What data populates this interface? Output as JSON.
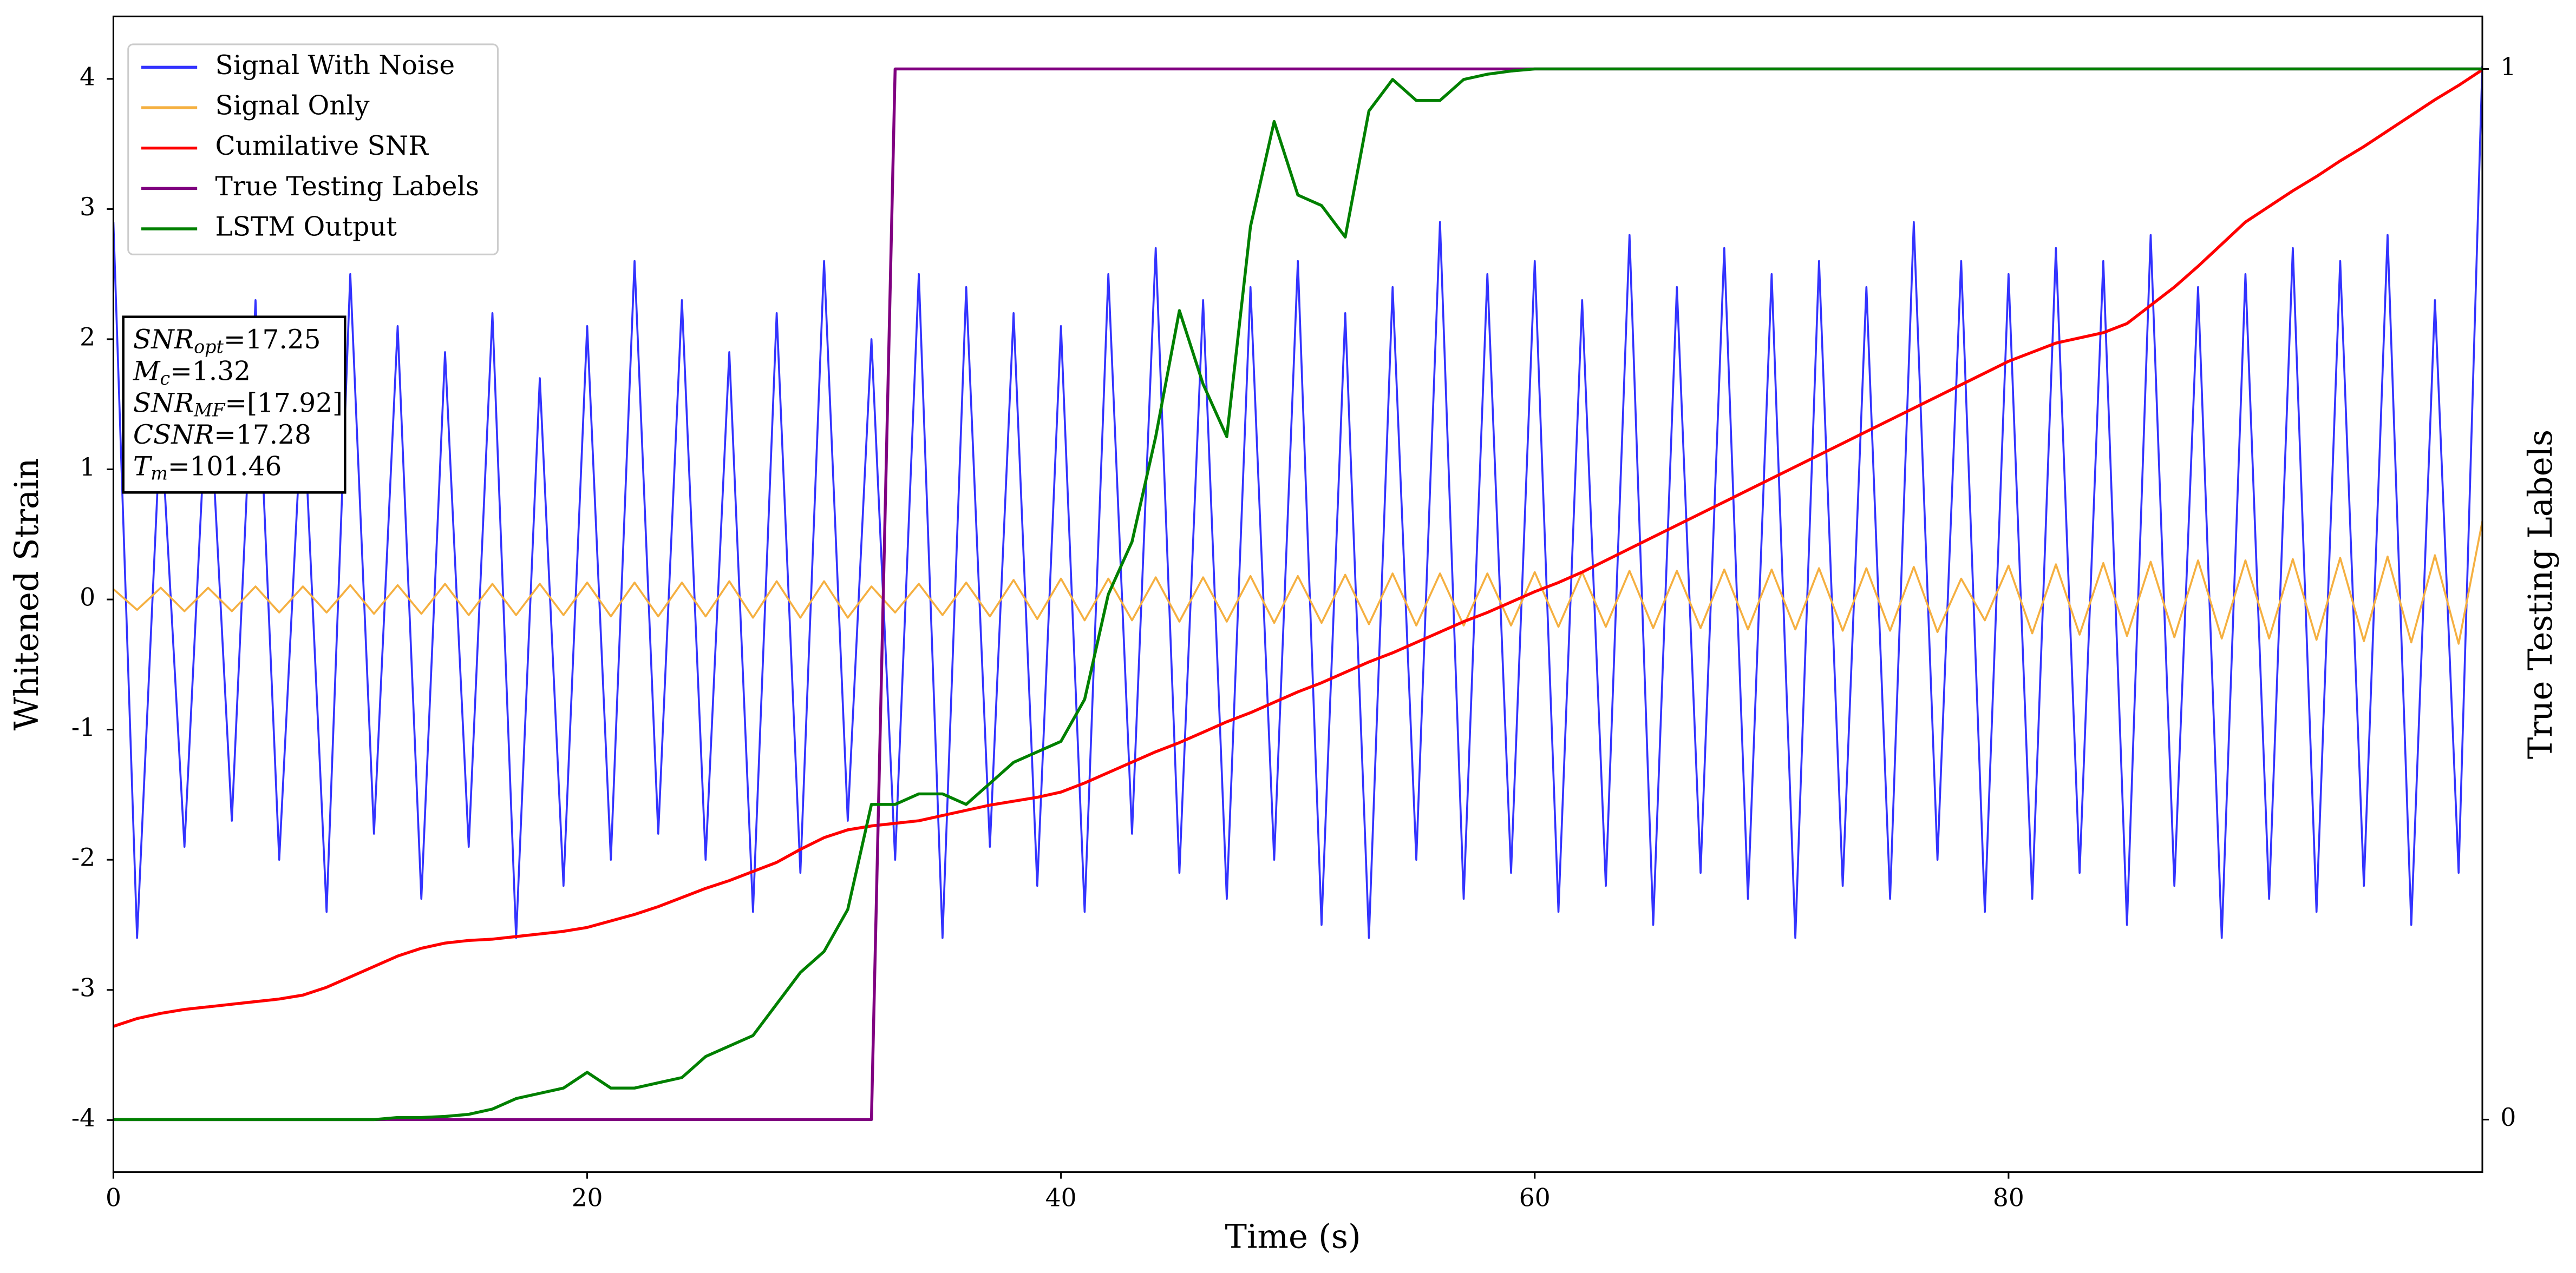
{
  "chart_data": {
    "type": "line",
    "x_label": "Time (s)",
    "y_label": "Whitened Strain",
    "y2_label": "True Testing Labels",
    "xlim": [
      0,
      100
    ],
    "xticks": [
      0,
      20,
      40,
      60,
      80
    ],
    "ylim": [
      -4.4,
      4.48
    ],
    "yticks": [
      -4,
      -3,
      -2,
      -1,
      0,
      1,
      2,
      3,
      4
    ],
    "y2lim": [
      -0.05,
      1.05
    ],
    "y2ticks": [
      0,
      1
    ],
    "legend": "upper left",
    "x": [
      0,
      1,
      2,
      3,
      4,
      5,
      6,
      7,
      8,
      9,
      10,
      11,
      12,
      13,
      14,
      15,
      16,
      17,
      18,
      19,
      20,
      21,
      22,
      23,
      24,
      25,
      26,
      27,
      28,
      29,
      30,
      31,
      32,
      33,
      34,
      35,
      36,
      37,
      38,
      39,
      40,
      41,
      42,
      43,
      44,
      45,
      46,
      47,
      48,
      49,
      50,
      51,
      52,
      53,
      54,
      55,
      56,
      57,
      58,
      59,
      60,
      61,
      62,
      63,
      64,
      65,
      66,
      67,
      68,
      69,
      70,
      71,
      72,
      73,
      74,
      75,
      76,
      77,
      78,
      79,
      80,
      81,
      82,
      83,
      84,
      85,
      86,
      87,
      88,
      89,
      90,
      91,
      92,
      93,
      94,
      95,
      96,
      97,
      98,
      99,
      100
    ],
    "series": [
      {
        "name": "Signal With Noise",
        "color": "#3333ff",
        "values": [
          2.9,
          -2.6,
          1.4,
          -1.9,
          1.8,
          -1.7,
          2.3,
          -2.0,
          1.6,
          -2.4,
          2.5,
          -1.8,
          2.1,
          -2.3,
          1.9,
          -1.9,
          2.2,
          -2.6,
          1.7,
          -2.2,
          2.1,
          -2.0,
          2.6,
          -1.8,
          2.3,
          -2.0,
          1.9,
          -2.4,
          2.2,
          -2.1,
          2.6,
          -1.7,
          2.0,
          -2.0,
          2.5,
          -2.6,
          2.4,
          -1.9,
          2.2,
          -2.2,
          2.1,
          -2.4,
          2.5,
          -1.8,
          2.7,
          -2.1,
          2.3,
          -2.3,
          2.4,
          -2.0,
          2.6,
          -2.5,
          2.2,
          -2.6,
          2.4,
          -2.0,
          2.9,
          -2.3,
          2.5,
          -2.1,
          2.6,
          -2.4,
          2.3,
          -2.2,
          2.8,
          -2.5,
          2.4,
          -2.1,
          2.7,
          -2.3,
          2.5,
          -2.6,
          2.6,
          -2.2,
          2.4,
          -2.3,
          2.9,
          -2.0,
          2.6,
          -2.4,
          2.5,
          -2.3,
          2.7,
          -2.1,
          2.6,
          -2.5,
          2.8,
          -2.2,
          2.4,
          -2.6,
          2.5,
          -2.3,
          2.7,
          -2.4,
          2.6,
          -2.2,
          2.8,
          -2.5,
          2.3,
          -2.1,
          4.1
        ]
      },
      {
        "name": "Signal Only",
        "color": "#f5b041",
        "values": [
          0.08,
          -0.08,
          0.09,
          -0.09,
          0.09,
          -0.09,
          0.1,
          -0.1,
          0.1,
          -0.1,
          0.11,
          -0.11,
          0.11,
          -0.11,
          0.12,
          -0.12,
          0.12,
          -0.12,
          0.12,
          -0.12,
          0.13,
          -0.13,
          0.13,
          -0.13,
          0.13,
          -0.13,
          0.14,
          -0.14,
          0.14,
          -0.14,
          0.14,
          -0.14,
          0.1,
          -0.1,
          0.12,
          -0.12,
          0.13,
          -0.13,
          0.15,
          -0.15,
          0.16,
          -0.16,
          0.16,
          -0.16,
          0.17,
          -0.17,
          0.17,
          -0.17,
          0.18,
          -0.18,
          0.18,
          -0.18,
          0.19,
          -0.19,
          0.2,
          -0.2,
          0.2,
          -0.2,
          0.2,
          -0.2,
          0.21,
          -0.21,
          0.21,
          -0.21,
          0.22,
          -0.22,
          0.22,
          -0.22,
          0.23,
          -0.23,
          0.23,
          -0.23,
          0.24,
          -0.24,
          0.24,
          -0.24,
          0.25,
          -0.25,
          0.16,
          -0.16,
          0.26,
          -0.26,
          0.27,
          -0.27,
          0.28,
          -0.28,
          0.29,
          -0.29,
          0.3,
          -0.3,
          0.3,
          -0.3,
          0.31,
          -0.31,
          0.32,
          -0.32,
          0.33,
          -0.33,
          0.34,
          -0.34,
          0.6
        ]
      },
      {
        "name": "Cumilative SNR",
        "color": "#ff0000",
        "values": [
          -3.28,
          -3.22,
          -3.18,
          -3.15,
          -3.13,
          -3.11,
          -3.09,
          -3.07,
          -3.04,
          -2.98,
          -2.9,
          -2.82,
          -2.74,
          -2.68,
          -2.64,
          -2.62,
          -2.61,
          -2.59,
          -2.57,
          -2.55,
          -2.52,
          -2.47,
          -2.42,
          -2.36,
          -2.29,
          -2.22,
          -2.16,
          -2.09,
          -2.02,
          -1.92,
          -1.83,
          -1.77,
          -1.74,
          -1.72,
          -1.7,
          -1.66,
          -1.62,
          -1.58,
          -1.55,
          -1.52,
          -1.48,
          -1.41,
          -1.33,
          -1.25,
          -1.17,
          -1.1,
          -1.02,
          -0.94,
          -0.87,
          -0.79,
          -0.71,
          -0.64,
          -0.56,
          -0.48,
          -0.41,
          -0.33,
          -0.25,
          -0.17,
          -0.1,
          -0.02,
          0.06,
          0.13,
          0.21,
          0.3,
          0.39,
          0.48,
          0.57,
          0.66,
          0.75,
          0.84,
          0.93,
          1.02,
          1.11,
          1.2,
          1.29,
          1.38,
          1.47,
          1.56,
          1.65,
          1.74,
          1.83,
          1.9,
          1.97,
          2.01,
          2.05,
          2.12,
          2.26,
          2.4,
          2.56,
          2.73,
          2.9,
          3.02,
          3.14,
          3.25,
          3.37,
          3.48,
          3.6,
          3.72,
          3.84,
          3.95,
          4.07
        ]
      },
      {
        "name": "True Testing Labels",
        "color": "#800080",
        "axis": "y2",
        "values": [
          0,
          0,
          0,
          0,
          0,
          0,
          0,
          0,
          0,
          0,
          0,
          0,
          0,
          0,
          0,
          0,
          0,
          0,
          0,
          0,
          0,
          0,
          0,
          0,
          0,
          0,
          0,
          0,
          0,
          0,
          0,
          0,
          0,
          1,
          1,
          1,
          1,
          1,
          1,
          1,
          1,
          1,
          1,
          1,
          1,
          1,
          1,
          1,
          1,
          1,
          1,
          1,
          1,
          1,
          1,
          1,
          1,
          1,
          1,
          1,
          1,
          1,
          1,
          1,
          1,
          1,
          1,
          1,
          1,
          1,
          1,
          1,
          1,
          1,
          1,
          1,
          1,
          1,
          1,
          1,
          1,
          1,
          1,
          1,
          1,
          1,
          1,
          1,
          1,
          1,
          1,
          1,
          1,
          1,
          1,
          1,
          1,
          1,
          1,
          1,
          1
        ]
      },
      {
        "name": "LSTM Output",
        "color": "#008000",
        "axis": "y2",
        "values": [
          0,
          0,
          0,
          0,
          0,
          0,
          0,
          0,
          0,
          0,
          0,
          0,
          0.002,
          0.002,
          0.003,
          0.005,
          0.01,
          0.02,
          0.025,
          0.03,
          0.045,
          0.03,
          0.03,
          0.035,
          0.04,
          0.06,
          0.07,
          0.08,
          0.11,
          0.14,
          0.16,
          0.2,
          0.3,
          0.3,
          0.31,
          0.31,
          0.3,
          0.32,
          0.34,
          0.35,
          0.36,
          0.4,
          0.5,
          0.55,
          0.65,
          0.77,
          0.7,
          0.65,
          0.85,
          0.95,
          0.88,
          0.87,
          0.84,
          0.96,
          0.99,
          0.97,
          0.97,
          0.99,
          0.995,
          0.998,
          1,
          1,
          1,
          1,
          1,
          1,
          1,
          1,
          1,
          1,
          1,
          1,
          1,
          1,
          1,
          1,
          1,
          1,
          1,
          1,
          1,
          1,
          1,
          1,
          1,
          1,
          1,
          1,
          1,
          1,
          1,
          1,
          1,
          1,
          1,
          1,
          1,
          1,
          1,
          1,
          1
        ]
      }
    ],
    "annotations": [
      {
        "var": "SNR",
        "sub": "opt",
        "text": "=17.25"
      },
      {
        "var": "M",
        "sub": "c",
        "text": "=1.32"
      },
      {
        "var": "SNR",
        "sub": "MF",
        "text": "=[17.92]"
      },
      {
        "var": "CSNR",
        "text": "=17.28"
      },
      {
        "var": "T",
        "sub": "m",
        "text": "=101.46"
      }
    ]
  }
}
